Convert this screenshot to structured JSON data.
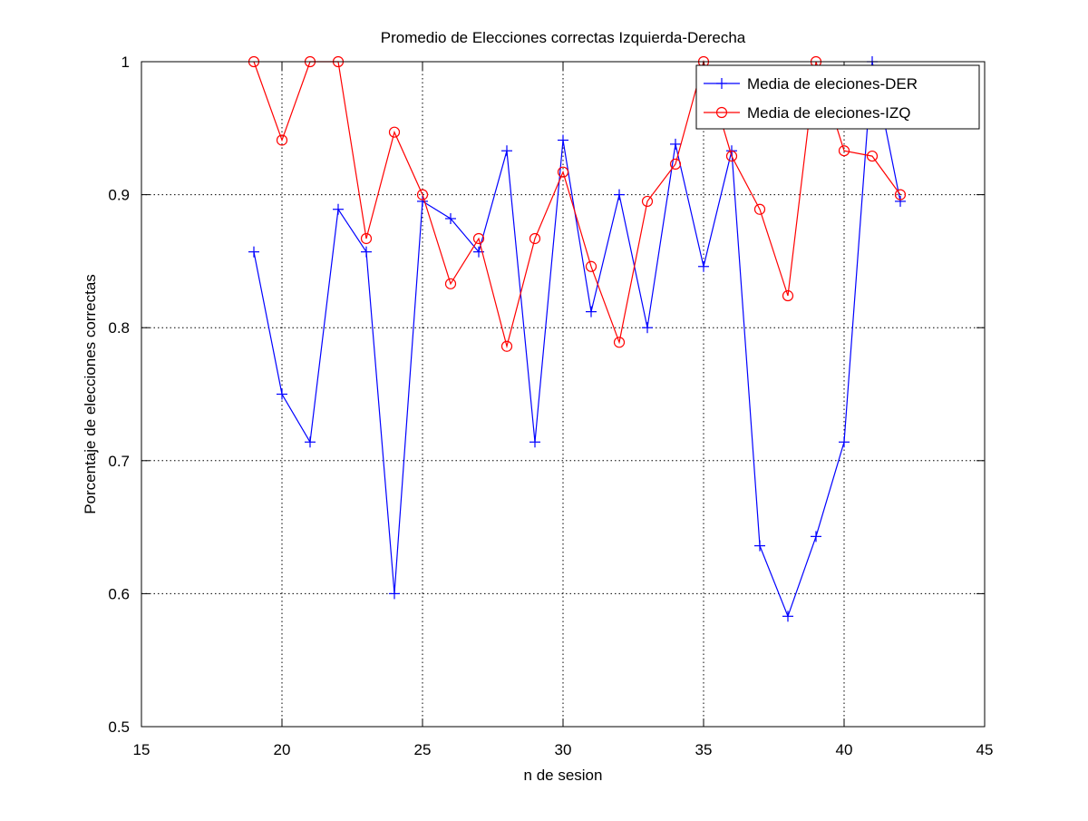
{
  "chart_data": {
    "type": "line",
    "title": "Promedio de Elecciones correctas Izquierda-Derecha",
    "xlabel": "n de sesion",
    "ylabel": "Porcentaje de elecciones correctas",
    "xlim": [
      15,
      45
    ],
    "ylim": [
      0.5,
      1
    ],
    "x_ticks": [
      15,
      20,
      25,
      30,
      35,
      40,
      45
    ],
    "y_ticks": [
      0.5,
      0.6,
      0.7,
      0.8,
      0.9,
      1
    ],
    "x_tick_labels": [
      "15",
      "20",
      "25",
      "30",
      "35",
      "40",
      "45"
    ],
    "y_tick_labels": [
      "0.5",
      "0.6",
      "0.7",
      "0.8",
      "0.9",
      "1"
    ],
    "grid": true,
    "legend_position": "top-right",
    "x": [
      19,
      20,
      21,
      22,
      23,
      24,
      25,
      26,
      27,
      28,
      29,
      30,
      31,
      32,
      33,
      34,
      35,
      36,
      37,
      38,
      39,
      40,
      41,
      42
    ],
    "series": [
      {
        "name": "Media de eleciones-DER",
        "color": "#0000ff",
        "marker": "plus",
        "values": [
          0.857,
          0.75,
          0.714,
          0.889,
          0.857,
          0.6,
          0.895,
          0.882,
          0.857,
          0.933,
          0.714,
          0.941,
          0.812,
          0.9,
          0.8,
          0.938,
          0.846,
          0.933,
          0.636,
          0.583,
          0.643,
          0.714,
          1.0,
          0.895
        ]
      },
      {
        "name": "Media de eleciones-IZQ",
        "color": "#ff0000",
        "marker": "circle",
        "values": [
          1.0,
          0.941,
          1.0,
          1.0,
          0.867,
          0.947,
          0.9,
          0.833,
          0.867,
          0.786,
          0.867,
          0.917,
          0.846,
          0.789,
          0.895,
          0.923,
          1.0,
          0.929,
          0.889,
          0.824,
          1.0,
          0.933,
          0.929,
          0.9
        ]
      }
    ]
  }
}
